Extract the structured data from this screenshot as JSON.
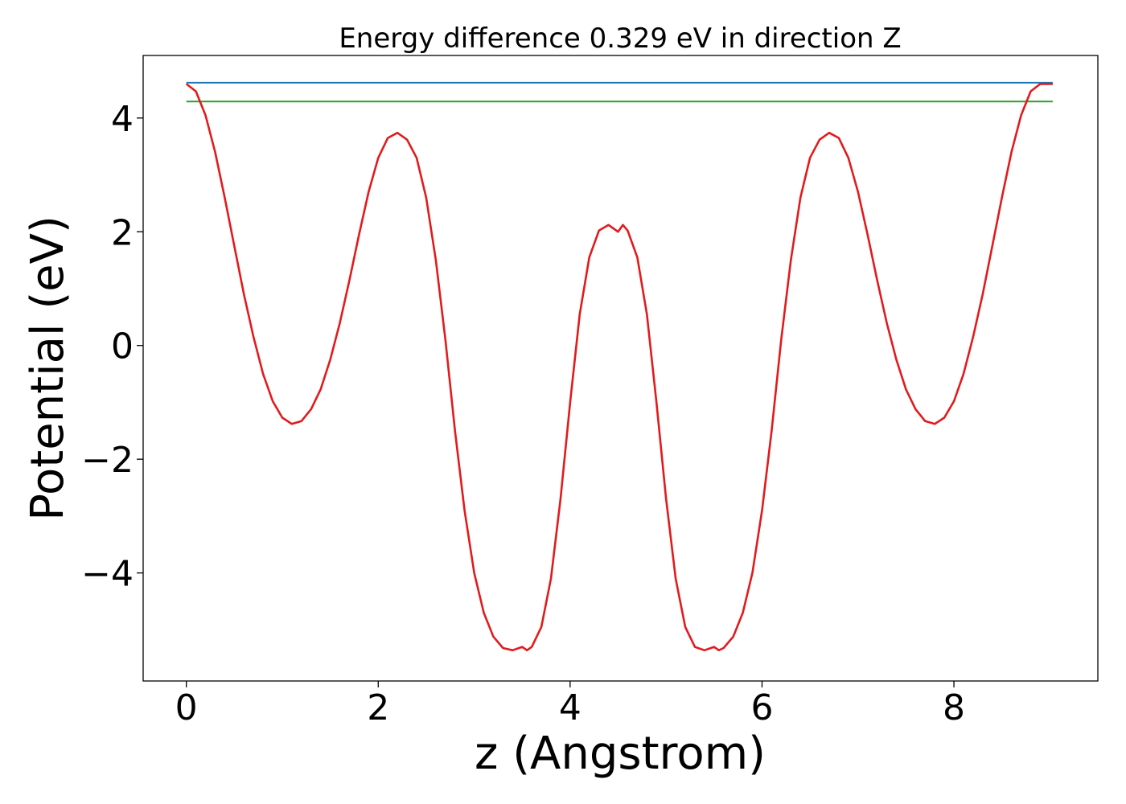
{
  "chart_data": {
    "type": "line",
    "title": "Energy difference 0.329 eV in direction Z",
    "xlabel": "z (Angstrom)",
    "ylabel": "Potential (eV)",
    "xlim": [
      -0.45,
      9.5
    ],
    "ylim": [
      -5.9,
      5.1
    ],
    "xticks": [
      0,
      2,
      4,
      6,
      8
    ],
    "yticks": [
      -4,
      -2,
      0,
      2,
      4
    ],
    "xtick_labels": [
      "0",
      "2",
      "4",
      "6",
      "8"
    ],
    "ytick_labels": [
      "−4",
      "−2",
      "0",
      "2",
      "4"
    ],
    "grid": false,
    "legend": "none",
    "series": [
      {
        "color": "#1f77b4",
        "style": "hline",
        "x": [
          0,
          9.03
        ],
        "y": [
          4.62,
          4.62
        ]
      },
      {
        "color": "#2ca02c",
        "style": "hline",
        "x": [
          0,
          9.03
        ],
        "y": [
          4.29,
          4.29
        ]
      },
      {
        "color": "#e31a1c",
        "style": "curve",
        "x": [
          0,
          0.1,
          0.2,
          0.3,
          0.4,
          0.5,
          0.6,
          0.7,
          0.8,
          0.9,
          1.0,
          1.1,
          1.2,
          1.3,
          1.4,
          1.5,
          1.6,
          1.7,
          1.8,
          1.9,
          2.0,
          2.1,
          2.2,
          2.3,
          2.4,
          2.5,
          2.6,
          2.7,
          2.8,
          2.9,
          3.0,
          3.1,
          3.2,
          3.3,
          3.4,
          3.5,
          3.55,
          3.6,
          3.7,
          3.8,
          3.9,
          4.0,
          4.1,
          4.2,
          4.3,
          4.4,
          4.5,
          4.55,
          4.6,
          4.7,
          4.8,
          4.9,
          5.0,
          5.1,
          5.2,
          5.3,
          5.4,
          5.5,
          5.55,
          5.6,
          5.7,
          5.8,
          5.9,
          6.0,
          6.1,
          6.2,
          6.3,
          6.4,
          6.5,
          6.6,
          6.7,
          6.8,
          6.9,
          7.0,
          7.1,
          7.2,
          7.3,
          7.4,
          7.5,
          7.6,
          7.7,
          7.8,
          7.9,
          8.0,
          8.1,
          8.2,
          8.3,
          8.4,
          8.5,
          8.6,
          8.7,
          8.8,
          8.9,
          9.03
        ],
        "y": [
          4.6,
          4.47,
          4.05,
          3.4,
          2.6,
          1.75,
          0.9,
          0.15,
          -0.5,
          -0.98,
          -1.27,
          -1.38,
          -1.33,
          -1.12,
          -0.77,
          -0.25,
          0.4,
          1.15,
          1.95,
          2.7,
          3.3,
          3.65,
          3.74,
          3.62,
          3.3,
          2.6,
          1.5,
          0.1,
          -1.5,
          -2.9,
          -4.0,
          -4.7,
          -5.12,
          -5.32,
          -5.36,
          -5.3,
          -5.36,
          -5.3,
          -4.95,
          -4.1,
          -2.7,
          -1.0,
          0.55,
          1.55,
          2.02,
          2.12,
          2.0,
          2.12,
          2.02,
          1.55,
          0.55,
          -1.0,
          -2.7,
          -4.1,
          -4.95,
          -5.3,
          -5.36,
          -5.3,
          -5.36,
          -5.32,
          -5.12,
          -4.7,
          -4.0,
          -2.9,
          -1.5,
          0.1,
          1.5,
          2.6,
          3.3,
          3.62,
          3.74,
          3.65,
          3.3,
          2.7,
          1.95,
          1.15,
          0.4,
          -0.25,
          -0.77,
          -1.12,
          -1.33,
          -1.38,
          -1.27,
          -0.98,
          -0.5,
          0.15,
          0.9,
          1.75,
          2.6,
          3.4,
          4.05,
          4.47,
          4.6,
          4.6
        ]
      }
    ]
  }
}
